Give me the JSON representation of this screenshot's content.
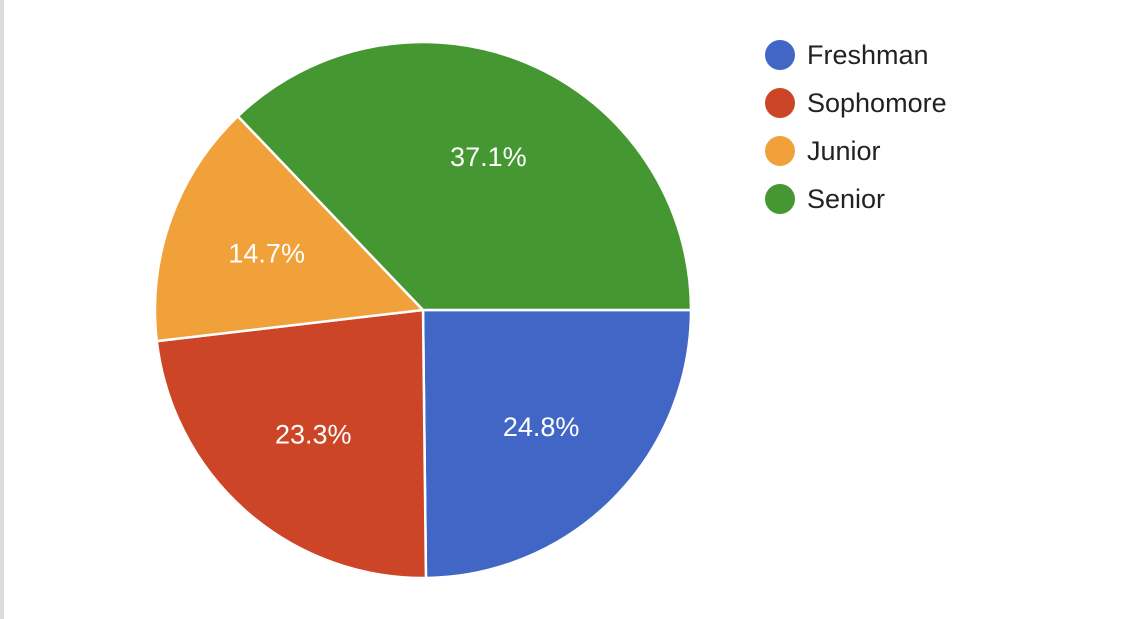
{
  "chart_data": {
    "type": "pie",
    "categories": [
      "Freshman",
      "Sophomore",
      "Junior",
      "Senior"
    ],
    "values": [
      24.8,
      23.3,
      14.7,
      37.1
    ],
    "value_labels": [
      "24.8%",
      "23.3%",
      "14.7%",
      "37.1%"
    ],
    "colors": [
      "#4166c6",
      "#cc4527",
      "#f0a13a",
      "#459732"
    ],
    "start_angle_deg": 90,
    "direction": "clockwise",
    "title": "",
    "legend": {
      "position": "right",
      "entries": [
        "Freshman",
        "Sophomore",
        "Junior",
        "Senior"
      ]
    }
  }
}
